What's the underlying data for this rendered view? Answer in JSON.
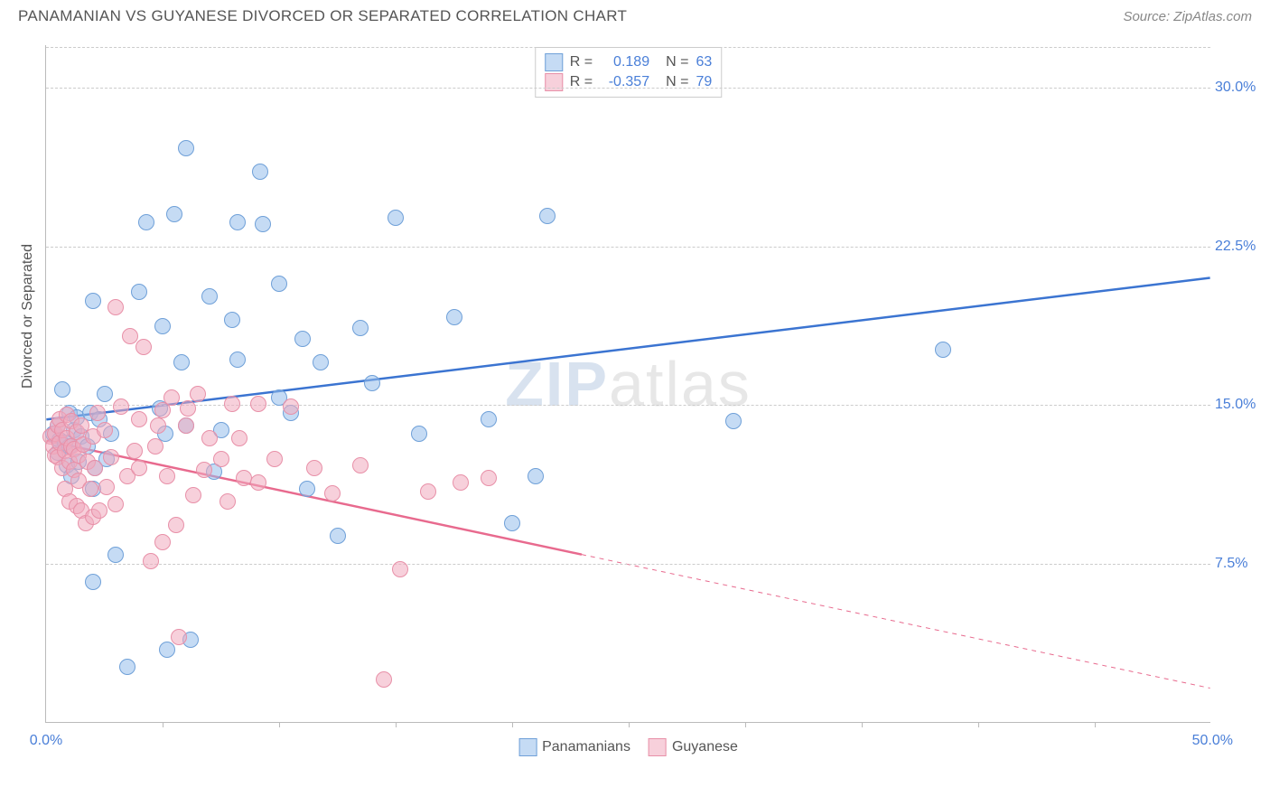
{
  "header": {
    "title": "PANAMANIAN VS GUYANESE DIVORCED OR SEPARATED CORRELATION CHART",
    "source": "Source: ZipAtlas.com"
  },
  "chart": {
    "type": "scatter",
    "ylabel": "Divorced or Separated",
    "xlim": [
      0,
      50
    ],
    "ylim": [
      0,
      32
    ],
    "xtick_label_start": "0.0%",
    "xtick_label_end": "50.0%",
    "xtick_positions": [
      5,
      10,
      15,
      20,
      25,
      30,
      35,
      40,
      45
    ],
    "ytick_labels": [
      {
        "v": 7.5,
        "label": "7.5%"
      },
      {
        "v": 15.0,
        "label": "15.0%"
      },
      {
        "v": 22.5,
        "label": "22.5%"
      },
      {
        "v": 30.0,
        "label": "30.0%"
      }
    ],
    "grid_color": "#cccccc",
    "axis_color": "#bbbbbb",
    "background_color": "#ffffff",
    "ytick_color": "#4a7fd8",
    "xtick_color": "#4a7fd8",
    "marker_radius": 9,
    "series": [
      {
        "name": "Panamanians",
        "point_fill": "rgba(150,190,235,0.55)",
        "point_stroke": "#6fa0d8",
        "line_color": "#3b74d1",
        "line_width": 2.5,
        "R": "0.189",
        "N": "63",
        "trend": {
          "x1": 0,
          "y1": 14.3,
          "x2": 50,
          "y2": 21.0,
          "solid_until_x": 50
        },
        "points": [
          [
            0.3,
            13.6
          ],
          [
            0.5,
            12.7
          ],
          [
            0.5,
            14.0
          ],
          [
            0.6,
            13.3
          ],
          [
            0.7,
            15.7
          ],
          [
            0.8,
            13.2
          ],
          [
            0.9,
            12.1
          ],
          [
            1.0,
            14.6
          ],
          [
            1.0,
            13.0
          ],
          [
            1.1,
            11.6
          ],
          [
            1.2,
            13.8
          ],
          [
            1.3,
            14.4
          ],
          [
            1.4,
            12.3
          ],
          [
            1.5,
            13.5
          ],
          [
            1.8,
            13.0
          ],
          [
            1.9,
            14.6
          ],
          [
            2.0,
            11.0
          ],
          [
            2.0,
            6.6
          ],
          [
            2.1,
            12.0
          ],
          [
            2.3,
            14.3
          ],
          [
            2.5,
            15.5
          ],
          [
            2.6,
            12.4
          ],
          [
            2.8,
            13.6
          ],
          [
            3.0,
            7.9
          ],
          [
            3.5,
            2.6
          ],
          [
            4.0,
            20.3
          ],
          [
            4.3,
            23.6
          ],
          [
            4.9,
            14.8
          ],
          [
            5.0,
            18.7
          ],
          [
            5.1,
            13.6
          ],
          [
            5.2,
            3.4
          ],
          [
            5.5,
            24.0
          ],
          [
            5.8,
            17.0
          ],
          [
            6.0,
            14.0
          ],
          [
            6.2,
            3.9
          ],
          [
            6.0,
            27.1
          ],
          [
            7.0,
            20.1
          ],
          [
            7.2,
            11.8
          ],
          [
            7.5,
            13.8
          ],
          [
            8.0,
            19.0
          ],
          [
            8.2,
            17.1
          ],
          [
            8.2,
            23.6
          ],
          [
            9.2,
            26.0
          ],
          [
            9.3,
            23.5
          ],
          [
            10.0,
            20.7
          ],
          [
            10.0,
            15.3
          ],
          [
            10.5,
            14.6
          ],
          [
            11.0,
            18.1
          ],
          [
            11.2,
            11.0
          ],
          [
            11.8,
            17.0
          ],
          [
            12.5,
            8.8
          ],
          [
            13.5,
            18.6
          ],
          [
            14.0,
            16.0
          ],
          [
            15.0,
            23.8
          ],
          [
            16.0,
            13.6
          ],
          [
            17.5,
            19.1
          ],
          [
            19.0,
            14.3
          ],
          [
            21.0,
            11.6
          ],
          [
            21.5,
            23.9
          ],
          [
            20.0,
            9.4
          ],
          [
            29.5,
            14.2
          ],
          [
            38.5,
            17.6
          ],
          [
            2.0,
            19.9
          ]
        ]
      },
      {
        "name": "Guyanese",
        "point_fill": "rgba(240,170,190,0.55)",
        "point_stroke": "#e890a8",
        "line_color": "#e86a8e",
        "line_width": 2.5,
        "R": "-0.357",
        "N": "79",
        "trend": {
          "x1": 0,
          "y1": 13.3,
          "x2": 50,
          "y2": 1.6,
          "solid_until_x": 23
        },
        "points": [
          [
            0.2,
            13.5
          ],
          [
            0.3,
            13.0
          ],
          [
            0.4,
            12.6
          ],
          [
            0.4,
            13.6
          ],
          [
            0.5,
            14.0
          ],
          [
            0.5,
            12.5
          ],
          [
            0.6,
            13.2
          ],
          [
            0.6,
            14.3
          ],
          [
            0.7,
            12.0
          ],
          [
            0.7,
            13.8
          ],
          [
            0.8,
            12.8
          ],
          [
            0.8,
            11.0
          ],
          [
            0.9,
            13.4
          ],
          [
            0.9,
            14.5
          ],
          [
            1.0,
            12.3
          ],
          [
            1.0,
            10.4
          ],
          [
            1.1,
            13.0
          ],
          [
            1.1,
            14.2
          ],
          [
            1.2,
            11.9
          ],
          [
            1.2,
            12.9
          ],
          [
            1.3,
            13.7
          ],
          [
            1.3,
            10.2
          ],
          [
            1.4,
            12.6
          ],
          [
            1.4,
            11.4
          ],
          [
            1.5,
            14.0
          ],
          [
            1.5,
            10.0
          ],
          [
            1.6,
            13.1
          ],
          [
            1.7,
            9.4
          ],
          [
            1.8,
            12.3
          ],
          [
            1.9,
            11.0
          ],
          [
            2.0,
            13.5
          ],
          [
            2.0,
            9.7
          ],
          [
            2.1,
            12.0
          ],
          [
            2.2,
            14.6
          ],
          [
            2.3,
            10.0
          ],
          [
            2.5,
            13.8
          ],
          [
            2.6,
            11.1
          ],
          [
            2.8,
            12.5
          ],
          [
            3.0,
            19.6
          ],
          [
            3.0,
            10.3
          ],
          [
            3.2,
            14.9
          ],
          [
            3.5,
            11.6
          ],
          [
            3.6,
            18.2
          ],
          [
            4.0,
            12.0
          ],
          [
            4.0,
            14.3
          ],
          [
            4.2,
            17.7
          ],
          [
            4.5,
            7.6
          ],
          [
            4.7,
            13.0
          ],
          [
            5.0,
            14.7
          ],
          [
            5.0,
            8.5
          ],
          [
            5.2,
            11.6
          ],
          [
            5.4,
            15.3
          ],
          [
            5.6,
            9.3
          ],
          [
            5.7,
            4.0
          ],
          [
            6.0,
            14.0
          ],
          [
            6.1,
            14.8
          ],
          [
            6.3,
            10.7
          ],
          [
            6.5,
            15.5
          ],
          [
            6.8,
            11.9
          ],
          [
            7.0,
            13.4
          ],
          [
            7.5,
            12.4
          ],
          [
            7.8,
            10.4
          ],
          [
            8.0,
            15.0
          ],
          [
            8.3,
            13.4
          ],
          [
            8.5,
            11.5
          ],
          [
            9.1,
            15.0
          ],
          [
            9.1,
            11.3
          ],
          [
            9.8,
            12.4
          ],
          [
            10.5,
            14.9
          ],
          [
            11.5,
            12.0
          ],
          [
            12.3,
            10.8
          ],
          [
            13.5,
            12.1
          ],
          [
            14.5,
            2.0
          ],
          [
            15.2,
            7.2
          ],
          [
            16.4,
            10.9
          ],
          [
            17.8,
            11.3
          ],
          [
            19.0,
            11.5
          ],
          [
            4.8,
            14.0
          ],
          [
            3.8,
            12.8
          ]
        ]
      }
    ],
    "legend_top": {
      "R_label": "R =",
      "N_label": "N ="
    },
    "watermark": {
      "zip": "ZIP",
      "atlas": "atlas"
    }
  }
}
